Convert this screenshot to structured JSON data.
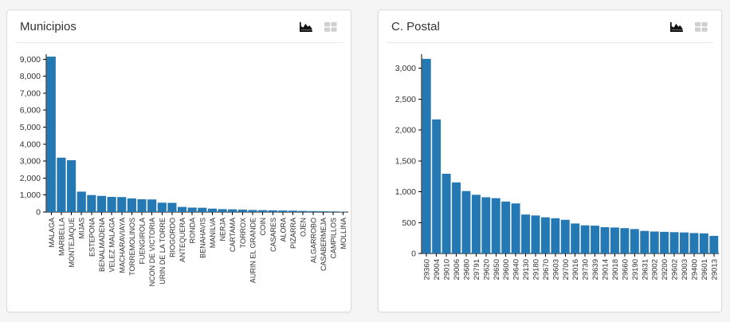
{
  "page": {
    "background": "#f5f5f6"
  },
  "panels": [
    {
      "title": "Municipios",
      "toolbar": {
        "chart_view_icon": "area-chart-icon",
        "table_view_icon": "table-icon"
      }
    },
    {
      "title": "C. Postal",
      "toolbar": {
        "chart_view_icon": "area-chart-icon",
        "table_view_icon": "table-icon"
      }
    }
  ],
  "icon_colors": {
    "active_view": "#111111",
    "inactive_view": "#cfcfcf"
  },
  "chart_data": [
    {
      "type": "bar",
      "title": "Municipios",
      "categories": [
        "MALAGA",
        "MARBELLA",
        "MONTEJAQUE",
        "MIJAS",
        "ESTEPONA",
        "BENALMADENA",
        "VELEZ MALAGA",
        "MACHARAVIAYA",
        "TORREMOLINOS",
        "FUENGIROLA",
        "NCON DE VICTORIA",
        "URIN DE LA TORRE",
        "RIOGORDO",
        "ANTEQUERA",
        "RONDA",
        "BENAHAVIS",
        "MANILVA",
        "NERJA",
        "CARTAMA",
        "TORROX",
        "AURIN EL GRANDE",
        "COIN",
        "CASARES",
        "ALORA",
        "PIZARRA",
        "OJEN",
        "ALGARROBO",
        "CASABERMEJA",
        "CAMPILLOS",
        "MOLLINA"
      ],
      "values": [
        9150,
        3200,
        3050,
        1200,
        1000,
        950,
        890,
        880,
        800,
        750,
        740,
        550,
        540,
        300,
        260,
        250,
        200,
        170,
        160,
        140,
        120,
        110,
        100,
        90,
        80,
        65,
        55,
        45,
        35,
        25
      ],
      "xlabel": "",
      "ylabel": "",
      "ylim": [
        0,
        9200
      ],
      "ytick_step": 1000,
      "grid": false,
      "legend": "none",
      "bar_color": "#2478b4",
      "x_labels_rotation": -90
    },
    {
      "type": "bar",
      "title": "C. Postal",
      "categories": [
        "29360",
        "29004",
        "29010",
        "29006",
        "29680",
        "29791",
        "29620",
        "29650",
        "29600",
        "29640",
        "29130",
        "29180",
        "29670",
        "29603",
        "29700",
        "29016",
        "29730",
        "29639",
        "29014",
        "29018",
        "29660",
        "29190",
        "29631",
        "29002",
        "29200",
        "29602",
        "29003",
        "29400",
        "29601",
        "29013"
      ],
      "values": [
        3150,
        2170,
        1290,
        1150,
        1010,
        950,
        910,
        895,
        840,
        810,
        630,
        615,
        585,
        570,
        545,
        485,
        455,
        450,
        425,
        420,
        410,
        395,
        365,
        355,
        350,
        345,
        340,
        330,
        325,
        285
      ],
      "xlabel": "",
      "ylabel": "",
      "ylim": [
        0,
        3200
      ],
      "ytick_step": 500,
      "grid": false,
      "legend": "none",
      "bar_color": "#2478b4",
      "x_labels_rotation": -90
    }
  ]
}
